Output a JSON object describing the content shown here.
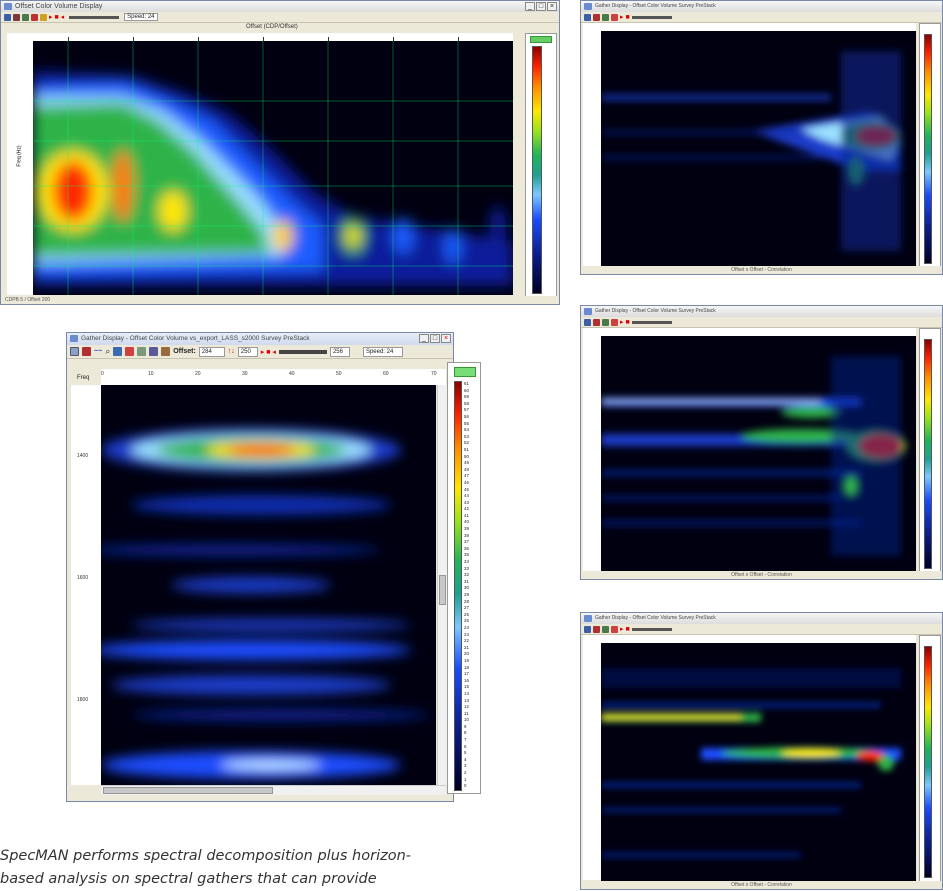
{
  "windows": {
    "topleft": {
      "title": "Offset Color Volume Display",
      "toolbar_text": "Speed: 24",
      "axis_title": "Offset (CDP/Offset)",
      "ylabel": "Freq (Hz)",
      "status": "CDPB 5 / Offset 200"
    },
    "main": {
      "title": "Gather Display - Offset Color Volume vs_export_LASS_s2000 Survey PreStack",
      "offset_label": "Offset:",
      "offset_value": "284",
      "offset_value2": "250",
      "end_value": "256",
      "speed_label": "Speed: 24",
      "freq_label": "Freq",
      "x_ticks": [
        "0",
        "10",
        "20",
        "30",
        "40",
        "50",
        "60",
        "70"
      ],
      "y_ticks": [
        "1400",
        "1600",
        "1800"
      ],
      "colorbar_ticks": [
        "61",
        "60",
        "59",
        "58",
        "57",
        "56",
        "55",
        "54",
        "53",
        "52",
        "51",
        "50",
        "49",
        "48",
        "47",
        "46",
        "45",
        "44",
        "43",
        "42",
        "41",
        "40",
        "39",
        "38",
        "37",
        "36",
        "35",
        "34",
        "33",
        "32",
        "31",
        "30",
        "29",
        "28",
        "27",
        "26",
        "25",
        "24",
        "23",
        "22",
        "21",
        "20",
        "19",
        "18",
        "17",
        "16",
        "15",
        "14",
        "13",
        "12",
        "11",
        "10",
        "9",
        "8",
        "7",
        "6",
        "5",
        "4",
        "3",
        "2",
        "1",
        "0"
      ]
    },
    "right1": {
      "title": "Gather Display - Offset Color Volume Survey PreStack",
      "status": "Offset x Offset - Correlation"
    },
    "right2": {
      "title": "Gather Display - Offset Color Volume Survey PreStack",
      "status": "Offset x Offset - Correlation"
    },
    "right3": {
      "title": "Gather Display - Offset Color Volume Survey PreStack",
      "status": "Offset x Offset - Correlation"
    }
  },
  "caption": {
    "line1": "SpecMAN performs spectral decomposition plus horizon-",
    "line2": "based analysis on spectral gathers that can provide"
  },
  "colors": {
    "plot_bg": "#000010",
    "red": "#ff2a00",
    "yellow": "#ffe600",
    "green": "#2fb34a",
    "cyan": "#8fd6ff",
    "blue": "#1a4dff",
    "navy": "#0a1a7a"
  }
}
